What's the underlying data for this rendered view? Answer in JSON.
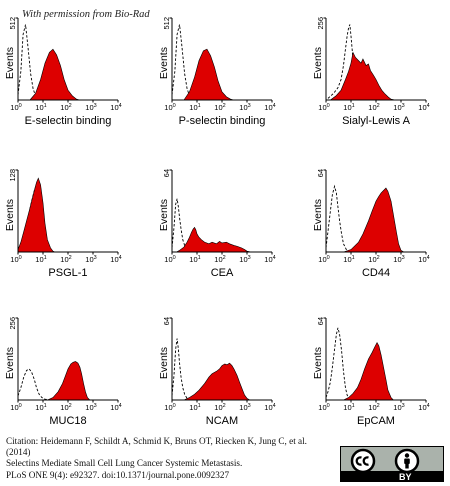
{
  "permission_note": "With permission from Bio-Rad",
  "citation": {
    "lines": [
      "Citation: Heidemann F, Schildt A, Schmid K, Bruns OT, Riecken K, Jung C, et al.",
      "(2014)",
      "Selectins Mediate Small Cell Lung Cancer Systemic Metastasis.",
      "PLoS ONE 9(4): e92327.  doi:10.1371/journal.pone.0092327"
    ]
  },
  "license_badge": {
    "icons": [
      "cc-icon",
      "by-person-icon"
    ],
    "by_text": "BY"
  },
  "colors": {
    "fill": "#dd0000",
    "isotype_line": "#000000"
  },
  "chart_data": [
    {
      "type": "area",
      "xlabel": "E-selectin binding",
      "ylabel": "Events",
      "ymax_label": "512",
      "xscale": "log",
      "xlim": [
        1,
        10000
      ],
      "xticks": [
        1,
        10,
        100,
        1000,
        10000
      ],
      "xtick_labels": [
        [
          "10",
          "0"
        ],
        [
          "10",
          "1"
        ],
        [
          "10",
          "2"
        ],
        [
          "10",
          "3"
        ],
        [
          "10",
          "4"
        ]
      ],
      "series": [
        {
          "role": "isotype",
          "style": "dashed",
          "x": [
            1,
            1.3,
            1.6,
            2,
            2.5,
            3.2,
            4,
            5,
            6.3,
            8,
            10
          ],
          "y": [
            0.06,
            0.35,
            0.8,
            0.92,
            0.65,
            0.32,
            0.14,
            0.05,
            0.02,
            0.005,
            0
          ]
        },
        {
          "role": "stained",
          "style": "filled",
          "x": [
            3,
            5,
            8,
            12,
            18,
            25,
            35,
            50,
            70,
            100,
            150,
            220,
            300
          ],
          "y": [
            0,
            0.08,
            0.25,
            0.45,
            0.58,
            0.62,
            0.55,
            0.42,
            0.25,
            0.12,
            0.05,
            0.01,
            0
          ]
        }
      ]
    },
    {
      "type": "area",
      "xlabel": "P-selectin binding",
      "ylabel": "Events",
      "ymax_label": "512",
      "xscale": "log",
      "xlim": [
        1,
        10000
      ],
      "xticks": [
        1,
        10,
        100,
        1000,
        10000
      ],
      "xtick_labels": [
        [
          "10",
          "0"
        ],
        [
          "10",
          "1"
        ],
        [
          "10",
          "2"
        ],
        [
          "10",
          "3"
        ],
        [
          "10",
          "4"
        ]
      ],
      "series": [
        {
          "role": "isotype",
          "style": "dashed",
          "x": [
            1,
            1.3,
            1.6,
            2,
            2.5,
            3.2,
            4,
            5,
            6.3,
            8,
            10
          ],
          "y": [
            0.06,
            0.35,
            0.8,
            0.92,
            0.65,
            0.32,
            0.14,
            0.05,
            0.02,
            0.005,
            0
          ]
        },
        {
          "role": "stained",
          "style": "filled",
          "x": [
            3,
            5,
            8,
            12,
            18,
            25,
            35,
            50,
            70,
            100,
            150,
            220,
            300
          ],
          "y": [
            0,
            0.1,
            0.28,
            0.48,
            0.6,
            0.62,
            0.54,
            0.4,
            0.23,
            0.1,
            0.04,
            0.01,
            0
          ]
        }
      ]
    },
    {
      "type": "area",
      "xlabel": "Sialyl-Lewis A",
      "ylabel": "Events",
      "ymax_label": "256",
      "xscale": "log",
      "xlim": [
        1,
        10000
      ],
      "xticks": [
        1,
        10,
        100,
        1000,
        10000
      ],
      "xtick_labels": [
        [
          "10",
          "0"
        ],
        [
          "10",
          "1"
        ],
        [
          "10",
          "2"
        ],
        [
          "10",
          "3"
        ],
        [
          "10",
          "4"
        ]
      ],
      "series": [
        {
          "role": "isotype",
          "style": "dashed",
          "x": [
            1.2,
            2,
            3,
            4,
            5,
            6,
            7,
            8,
            9,
            10,
            12,
            14,
            17,
            20,
            25,
            35
          ],
          "y": [
            0.02,
            0.08,
            0.15,
            0.25,
            0.42,
            0.62,
            0.78,
            0.88,
            0.92,
            0.78,
            0.5,
            0.3,
            0.15,
            0.06,
            0.02,
            0
          ]
        },
        {
          "role": "stained",
          "style": "filled",
          "x": [
            1.5,
            2.5,
            4,
            6,
            8,
            10,
            12,
            15,
            20,
            25,
            30,
            40,
            50,
            60,
            80,
            100,
            130,
            170,
            220,
            300,
            400,
            600
          ],
          "y": [
            0,
            0.05,
            0.12,
            0.25,
            0.35,
            0.45,
            0.58,
            0.52,
            0.48,
            0.45,
            0.5,
            0.42,
            0.44,
            0.36,
            0.3,
            0.25,
            0.18,
            0.12,
            0.08,
            0.04,
            0.01,
            0
          ]
        }
      ]
    },
    {
      "type": "area",
      "xlabel": "PSGL-1",
      "ylabel": "Events",
      "ymax_label": "128",
      "xscale": "log",
      "xlim": [
        1,
        10000
      ],
      "xticks": [
        1,
        10,
        100,
        1000,
        10000
      ],
      "xtick_labels": [
        [
          "10",
          "0"
        ],
        [
          "10",
          "1"
        ],
        [
          "10",
          "2"
        ],
        [
          "10",
          "3"
        ],
        [
          "10",
          "4"
        ]
      ],
      "series": [
        {
          "role": "isotype",
          "style": "dashed",
          "x": [
            1,
            1.3,
            1.7,
            2.2,
            2.8,
            3.5,
            4.5,
            5.5,
            7,
            9,
            12,
            15,
            20,
            25
          ],
          "y": [
            0.02,
            0.08,
            0.18,
            0.32,
            0.48,
            0.62,
            0.75,
            0.82,
            0.7,
            0.5,
            0.25,
            0.08,
            0.02,
            0
          ]
        },
        {
          "role": "stained",
          "style": "filled",
          "x": [
            1,
            1.3,
            1.7,
            2.2,
            2.8,
            3.5,
            4.5,
            5.5,
            6.5,
            8,
            10,
            12,
            15,
            20,
            25,
            30
          ],
          "y": [
            0.03,
            0.12,
            0.25,
            0.38,
            0.5,
            0.62,
            0.75,
            0.85,
            0.9,
            0.82,
            0.6,
            0.35,
            0.15,
            0.05,
            0.01,
            0
          ]
        }
      ]
    },
    {
      "type": "area",
      "xlabel": "CEA",
      "ylabel": "Events",
      "ymax_label": "64",
      "xscale": "log",
      "xlim": [
        1,
        10000
      ],
      "xticks": [
        1,
        10,
        100,
        1000,
        10000
      ],
      "xtick_labels": [
        [
          "10",
          "0"
        ],
        [
          "10",
          "1"
        ],
        [
          "10",
          "2"
        ],
        [
          "10",
          "3"
        ],
        [
          "10",
          "4"
        ]
      ],
      "series": [
        {
          "role": "isotype",
          "style": "dashed",
          "x": [
            1,
            1.2,
            1.4,
            1.6,
            1.8,
            2,
            2.3,
            2.7,
            3.2,
            4,
            5,
            6,
            8
          ],
          "y": [
            0.05,
            0.3,
            0.58,
            0.65,
            0.55,
            0.42,
            0.28,
            0.15,
            0.08,
            0.03,
            0.01,
            0.005,
            0
          ]
        },
        {
          "role": "stained",
          "style": "filled",
          "x": [
            1.5,
            2,
            3,
            4,
            5,
            6,
            7,
            8,
            9,
            10,
            12,
            15,
            20,
            30,
            40,
            60,
            80,
            100,
            150,
            200,
            300,
            400,
            600,
            800,
            1000,
            1500
          ],
          "y": [
            0,
            0.02,
            0.06,
            0.12,
            0.18,
            0.24,
            0.28,
            0.3,
            0.27,
            0.22,
            0.18,
            0.15,
            0.12,
            0.1,
            0.12,
            0.1,
            0.13,
            0.11,
            0.12,
            0.1,
            0.08,
            0.07,
            0.05,
            0.03,
            0.01,
            0
          ]
        }
      ]
    },
    {
      "type": "area",
      "xlabel": "CD44",
      "ylabel": "Events",
      "ymax_label": "64",
      "xscale": "log",
      "xlim": [
        1,
        10000
      ],
      "xticks": [
        1,
        10,
        100,
        1000,
        10000
      ],
      "xtick_labels": [
        [
          "10",
          "0"
        ],
        [
          "10",
          "1"
        ],
        [
          "10",
          "2"
        ],
        [
          "10",
          "3"
        ],
        [
          "10",
          "4"
        ]
      ],
      "series": [
        {
          "role": "isotype",
          "style": "dashed",
          "x": [
            1,
            1.2,
            1.5,
            1.8,
            2.2,
            2.6,
            3,
            3.5,
            4.2,
            5,
            6.5,
            8,
            10
          ],
          "y": [
            0.05,
            0.25,
            0.5,
            0.7,
            0.8,
            0.72,
            0.55,
            0.38,
            0.22,
            0.1,
            0.03,
            0.01,
            0
          ]
        },
        {
          "role": "stained",
          "style": "filled",
          "x": [
            5,
            10,
            20,
            30,
            50,
            70,
            100,
            130,
            160,
            200,
            250,
            300,
            400,
            500,
            650,
            800,
            1000,
            1300
          ],
          "y": [
            0,
            0.03,
            0.12,
            0.22,
            0.38,
            0.5,
            0.62,
            0.68,
            0.72,
            0.75,
            0.78,
            0.74,
            0.62,
            0.45,
            0.25,
            0.1,
            0.02,
            0
          ]
        }
      ]
    },
    {
      "type": "area",
      "xlabel": "MUC18",
      "ylabel": "Events",
      "ymax_label": "256",
      "xscale": "log",
      "xlim": [
        1,
        10000
      ],
      "xticks": [
        1,
        10,
        100,
        1000,
        10000
      ],
      "xtick_labels": [
        [
          "10",
          "0"
        ],
        [
          "10",
          "1"
        ],
        [
          "10",
          "2"
        ],
        [
          "10",
          "3"
        ],
        [
          "10",
          "4"
        ]
      ],
      "series": [
        {
          "role": "isotype",
          "style": "dashed",
          "x": [
            1,
            1.3,
            1.7,
            2.2,
            2.8,
            3.5,
            4.5,
            5.5,
            7,
            9,
            12,
            16,
            22
          ],
          "y": [
            0.05,
            0.15,
            0.28,
            0.36,
            0.38,
            0.34,
            0.25,
            0.15,
            0.07,
            0.03,
            0.01,
            0.005,
            0
          ]
        },
        {
          "role": "stained",
          "style": "filled",
          "x": [
            15,
            25,
            40,
            60,
            80,
            100,
            130,
            160,
            200,
            250,
            300,
            350,
            420,
            500,
            600,
            750
          ],
          "y": [
            0,
            0.03,
            0.1,
            0.2,
            0.3,
            0.38,
            0.44,
            0.46,
            0.47,
            0.45,
            0.4,
            0.32,
            0.2,
            0.1,
            0.03,
            0
          ]
        }
      ]
    },
    {
      "type": "area",
      "xlabel": "NCAM",
      "ylabel": "Events",
      "ymax_label": "64",
      "xscale": "log",
      "xlim": [
        1,
        10000
      ],
      "xticks": [
        1,
        10,
        100,
        1000,
        10000
      ],
      "xtick_labels": [
        [
          "10",
          "0"
        ],
        [
          "10",
          "1"
        ],
        [
          "10",
          "2"
        ],
        [
          "10",
          "3"
        ],
        [
          "10",
          "4"
        ]
      ],
      "series": [
        {
          "role": "isotype",
          "style": "dashed",
          "x": [
            1,
            1.2,
            1.4,
            1.6,
            1.8,
            2,
            2.3,
            2.7,
            3.2,
            4,
            5,
            6.5
          ],
          "y": [
            0.05,
            0.3,
            0.62,
            0.75,
            0.62,
            0.45,
            0.28,
            0.15,
            0.07,
            0.02,
            0.01,
            0
          ]
        },
        {
          "role": "stained",
          "style": "filled",
          "x": [
            3,
            5,
            8,
            12,
            20,
            30,
            40,
            60,
            80,
            100,
            130,
            160,
            200,
            250,
            300,
            400,
            500,
            650,
            800,
            1000,
            1300
          ],
          "y": [
            0,
            0.03,
            0.07,
            0.12,
            0.2,
            0.28,
            0.32,
            0.35,
            0.38,
            0.42,
            0.44,
            0.43,
            0.45,
            0.42,
            0.38,
            0.3,
            0.22,
            0.13,
            0.06,
            0.02,
            0
          ]
        }
      ]
    },
    {
      "type": "area",
      "xlabel": "EpCAM",
      "ylabel": "Events",
      "ymax_label": "64",
      "xscale": "log",
      "xlim": [
        1,
        10000
      ],
      "xticks": [
        1,
        10,
        100,
        1000,
        10000
      ],
      "xtick_labels": [
        [
          "10",
          "0"
        ],
        [
          "10",
          "1"
        ],
        [
          "10",
          "2"
        ],
        [
          "10",
          "3"
        ],
        [
          "10",
          "4"
        ]
      ],
      "series": [
        {
          "role": "isotype",
          "style": "dashed",
          "x": [
            1,
            1.2,
            1.5,
            1.8,
            2.2,
            2.6,
            3,
            3.5,
            4.2,
            5,
            6,
            7,
            8.5,
            10
          ],
          "y": [
            0.03,
            0.1,
            0.22,
            0.4,
            0.62,
            0.8,
            0.88,
            0.8,
            0.6,
            0.35,
            0.15,
            0.06,
            0.02,
            0
          ]
        },
        {
          "role": "stained",
          "style": "filled",
          "x": [
            5,
            8,
            12,
            18,
            25,
            35,
            50,
            70,
            90,
            110,
            130,
            160,
            200,
            250,
            300,
            400,
            500
          ],
          "y": [
            0,
            0.03,
            0.08,
            0.15,
            0.25,
            0.38,
            0.5,
            0.58,
            0.65,
            0.7,
            0.66,
            0.55,
            0.4,
            0.25,
            0.12,
            0.03,
            0
          ]
        }
      ]
    }
  ]
}
